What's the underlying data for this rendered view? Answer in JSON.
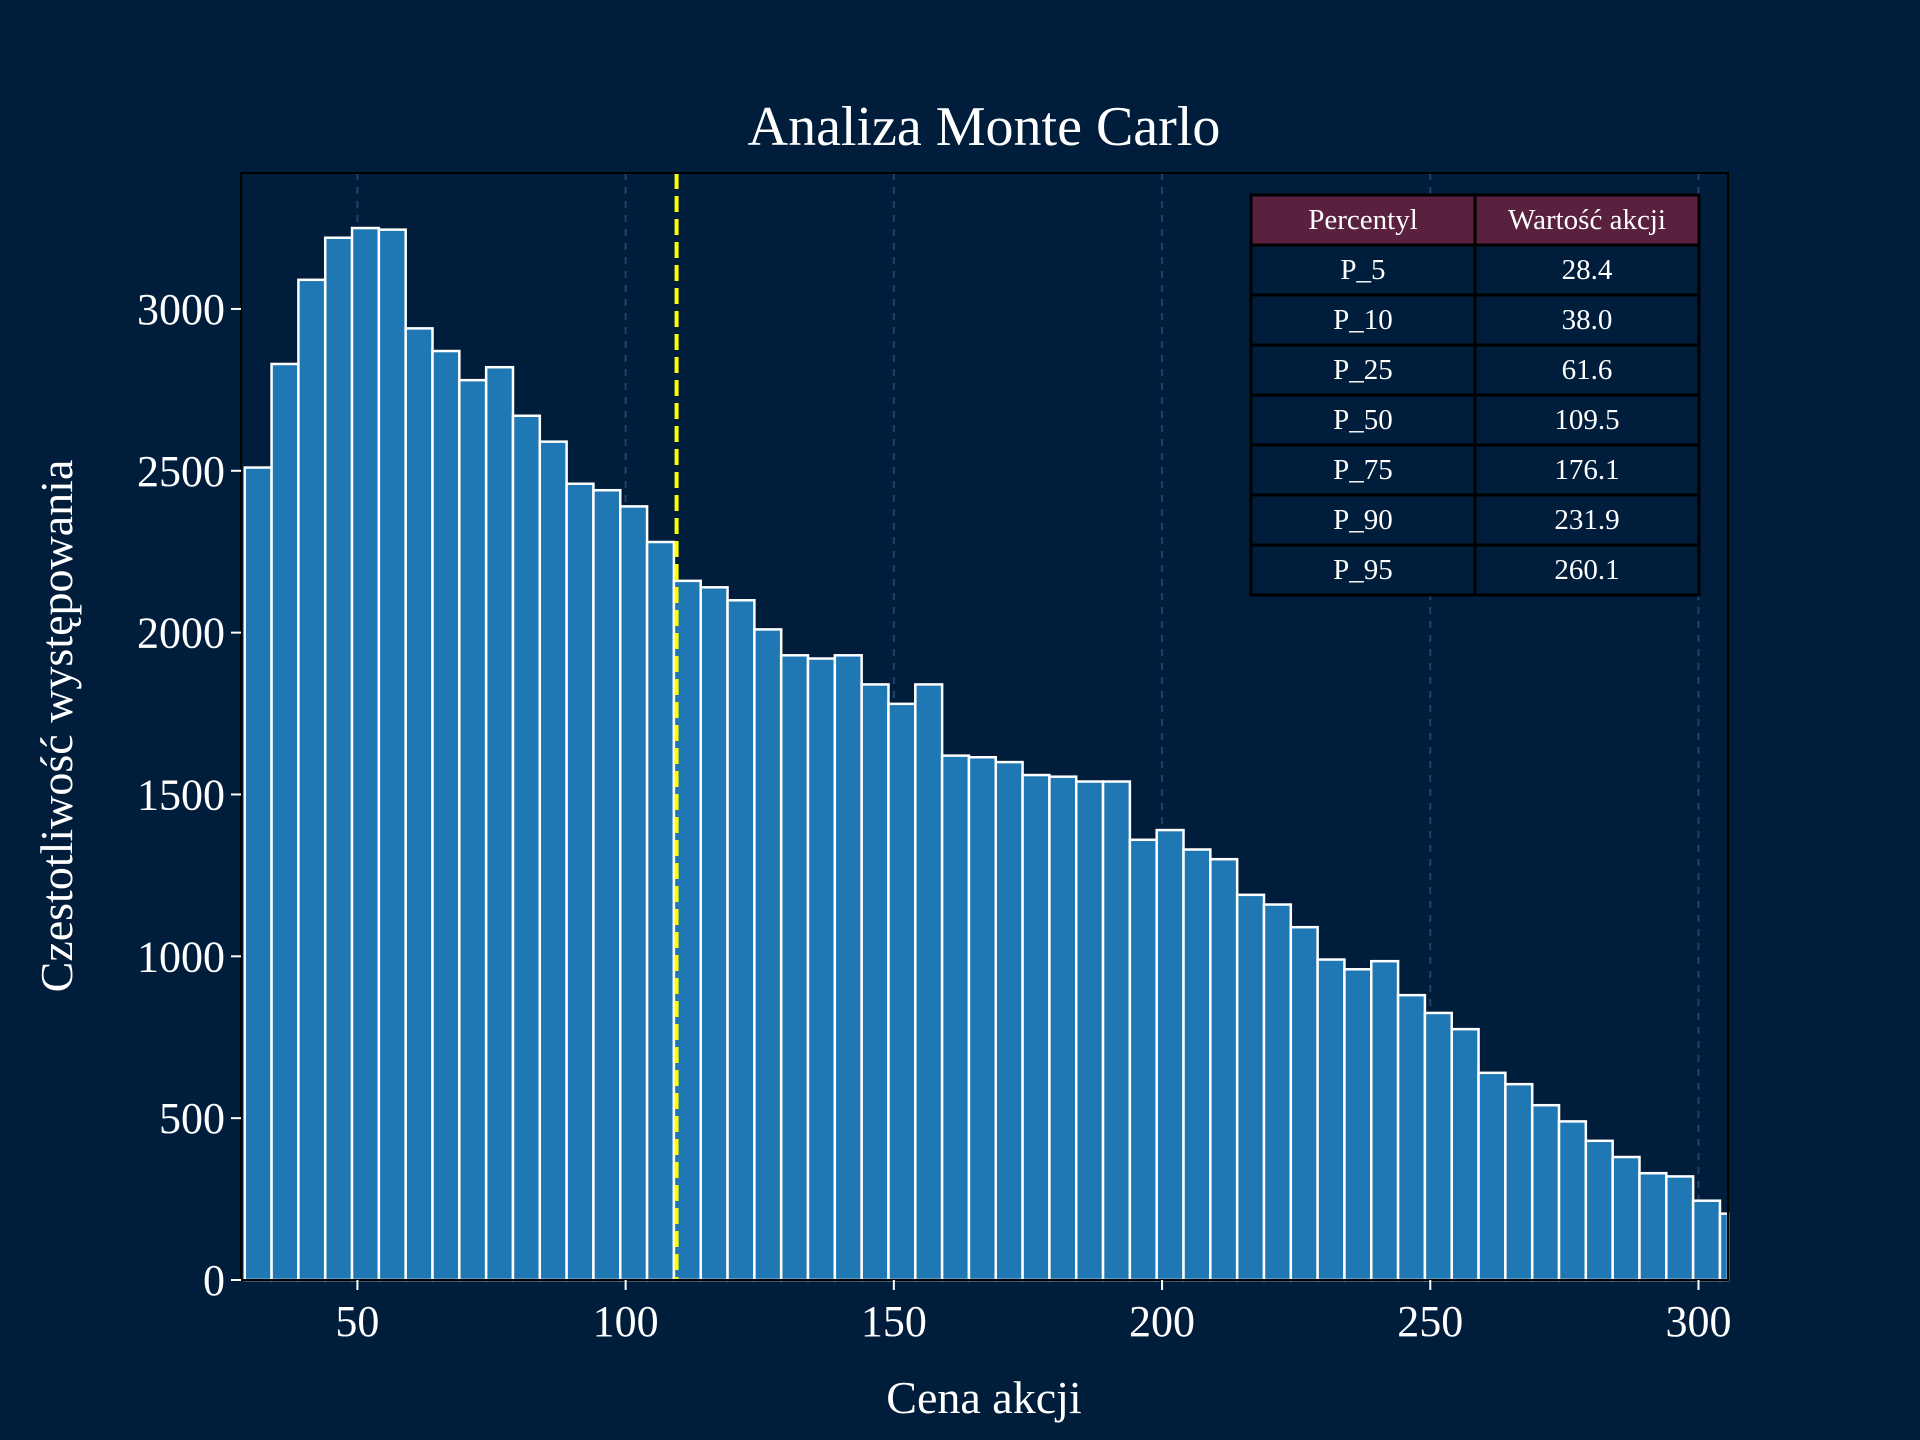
{
  "chart_data": {
    "type": "bar",
    "title": "Analiza Monte Carlo",
    "xlabel": "Cena akcji",
    "ylabel": "Czestotliwość występowania",
    "xlim": [
      28.3,
      305.5
    ],
    "ylim": [
      0,
      3420
    ],
    "x_ticks": [
      50,
      100,
      150,
      200,
      250,
      300
    ],
    "y_ticks": [
      0,
      500,
      1000,
      1500,
      2000,
      2500,
      3000
    ],
    "grid": "x only, dashed",
    "bin_start": 29.0,
    "bin_width": 5.0,
    "values": [
      2510,
      2830,
      3090,
      3220,
      3250,
      3245,
      2940,
      2870,
      2780,
      2820,
      2670,
      2590,
      2460,
      2440,
      2390,
      2280,
      2160,
      2140,
      2100,
      2010,
      1930,
      1920,
      1930,
      1840,
      1780,
      1840,
      1620,
      1615,
      1600,
      1560,
      1555,
      1540,
      1540,
      1360,
      1390,
      1330,
      1300,
      1190,
      1160,
      1090,
      990,
      960,
      985,
      880,
      825,
      775,
      640,
      605,
      540,
      490,
      430,
      380,
      330,
      320,
      245,
      205
    ],
    "reference_line": {
      "x": 109.5,
      "style": "dashed",
      "color": "#ffff00"
    },
    "colors": {
      "background": "#001e3c",
      "bar_fill": "#1f77b4",
      "bar_edge": "#ffffff",
      "table_header": "#5a2040"
    },
    "percentile_table": {
      "columns": [
        "Percentyl",
        "Wartość akcji"
      ],
      "rows": [
        [
          "P_5",
          "28.4"
        ],
        [
          "P_10",
          "38.0"
        ],
        [
          "P_25",
          "61.6"
        ],
        [
          "P_50",
          "109.5"
        ],
        [
          "P_75",
          "176.1"
        ],
        [
          "P_90",
          "231.9"
        ],
        [
          "P_95",
          "260.1"
        ]
      ]
    }
  }
}
